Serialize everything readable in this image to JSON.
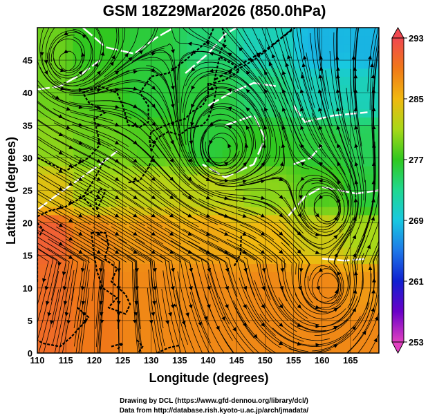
{
  "chart_data": {
    "type": "heatmap",
    "title": "GSM 18Z29Mar2026 (850.0hPa)",
    "xlabel": "Longitude (degrees)",
    "ylabel": "Latitude  (degrees)",
    "xlim": [
      110,
      170
    ],
    "ylim": [
      0,
      50
    ],
    "x_ticks": [
      "110",
      "115",
      "120",
      "125",
      "130",
      "135",
      "140",
      "145",
      "150",
      "155",
      "160",
      "165"
    ],
    "y_ticks": [
      "0",
      "5",
      "10",
      "15",
      "20",
      "25",
      "30",
      "35",
      "40",
      "45"
    ],
    "grid": true,
    "colorbar": {
      "range": [
        253,
        293
      ],
      "ticks": [
        "253",
        "261",
        "269",
        "277",
        "285",
        "293"
      ],
      "colors": {
        "253": "#e040c0",
        "257": "#6a00c8",
        "261": "#1020d0",
        "265": "#1e78e8",
        "269": "#18c8e0",
        "273": "#20d890",
        "277": "#30c820",
        "281": "#a8d818",
        "285": "#f0b810",
        "289": "#f07818",
        "293": "#f04850"
      }
    },
    "temperature_field": [
      {
        "lon": 112,
        "lat": 47,
        "value": 279
      },
      {
        "lon": 120,
        "lat": 47,
        "value": 277
      },
      {
        "lon": 130,
        "lat": 47,
        "value": 276
      },
      {
        "lon": 140,
        "lat": 47,
        "value": 274
      },
      {
        "lon": 150,
        "lat": 47,
        "value": 271
      },
      {
        "lon": 160,
        "lat": 47,
        "value": 268
      },
      {
        "lon": 168,
        "lat": 47,
        "value": 268
      },
      {
        "lon": 112,
        "lat": 40,
        "value": 279
      },
      {
        "lon": 120,
        "lat": 40,
        "value": 278
      },
      {
        "lon": 130,
        "lat": 40,
        "value": 276
      },
      {
        "lon": 140,
        "lat": 40,
        "value": 276
      },
      {
        "lon": 150,
        "lat": 40,
        "value": 274
      },
      {
        "lon": 160,
        "lat": 40,
        "value": 271
      },
      {
        "lon": 168,
        "lat": 40,
        "value": 271
      },
      {
        "lon": 112,
        "lat": 32,
        "value": 280
      },
      {
        "lon": 120,
        "lat": 32,
        "value": 279
      },
      {
        "lon": 130,
        "lat": 32,
        "value": 278
      },
      {
        "lon": 140,
        "lat": 32,
        "value": 276
      },
      {
        "lon": 150,
        "lat": 32,
        "value": 277
      },
      {
        "lon": 160,
        "lat": 32,
        "value": 276
      },
      {
        "lon": 168,
        "lat": 32,
        "value": 275
      },
      {
        "lon": 112,
        "lat": 25,
        "value": 284
      },
      {
        "lon": 120,
        "lat": 25,
        "value": 281
      },
      {
        "lon": 130,
        "lat": 25,
        "value": 282
      },
      {
        "lon": 140,
        "lat": 25,
        "value": 282
      },
      {
        "lon": 150,
        "lat": 25,
        "value": 280
      },
      {
        "lon": 160,
        "lat": 25,
        "value": 278
      },
      {
        "lon": 168,
        "lat": 25,
        "value": 276
      },
      {
        "lon": 112,
        "lat": 18,
        "value": 291
      },
      {
        "lon": 120,
        "lat": 18,
        "value": 288
      },
      {
        "lon": 130,
        "lat": 18,
        "value": 287
      },
      {
        "lon": 140,
        "lat": 18,
        "value": 286
      },
      {
        "lon": 150,
        "lat": 18,
        "value": 285
      },
      {
        "lon": 160,
        "lat": 18,
        "value": 283
      },
      {
        "lon": 168,
        "lat": 18,
        "value": 281
      },
      {
        "lon": 112,
        "lat": 10,
        "value": 290
      },
      {
        "lon": 120,
        "lat": 10,
        "value": 289
      },
      {
        "lon": 130,
        "lat": 10,
        "value": 288
      },
      {
        "lon": 140,
        "lat": 10,
        "value": 288
      },
      {
        "lon": 150,
        "lat": 10,
        "value": 288
      },
      {
        "lon": 160,
        "lat": 10,
        "value": 288
      },
      {
        "lon": 168,
        "lat": 10,
        "value": 287
      },
      {
        "lon": 112,
        "lat": 3,
        "value": 290
      },
      {
        "lon": 120,
        "lat": 3,
        "value": 289
      },
      {
        "lon": 130,
        "lat": 3,
        "value": 288
      },
      {
        "lon": 140,
        "lat": 3,
        "value": 288
      },
      {
        "lon": 150,
        "lat": 3,
        "value": 288
      },
      {
        "lon": 160,
        "lat": 3,
        "value": 288
      },
      {
        "lon": 168,
        "lat": 3,
        "value": 288
      }
    ],
    "cyclonic_centers": [
      {
        "lon": 115,
        "lat": 45
      },
      {
        "lon": 142,
        "lat": 31
      },
      {
        "lon": 161,
        "lat": 10
      },
      {
        "lon": 161,
        "lat": 22
      }
    ]
  },
  "credits": {
    "line1": "Drawing by DCL (https://www.gfd-dennou.org/library/dcl/)",
    "line2": "Data from http://database.rish.kyoto-u.ac.jp/arch/jmadata/"
  }
}
